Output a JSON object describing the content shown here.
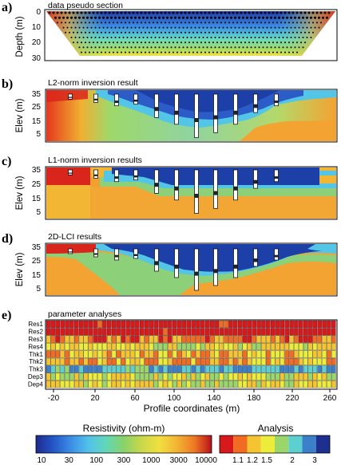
{
  "panels": {
    "a": {
      "label": "a)",
      "title": "data pseudo section",
      "ylabel": "Depth (m)",
      "yticks": [
        "0",
        "10",
        "20",
        "30"
      ]
    },
    "b": {
      "label": "b)",
      "title": "L2-norm inversion result",
      "ylabel": "Elev (m)",
      "yticks": [
        "35",
        "25",
        "15",
        "5"
      ]
    },
    "c": {
      "label": "c)",
      "title": "L1-norm inversion results",
      "ylabel": "Elev (m)",
      "yticks": [
        "35",
        "25",
        "15",
        "5"
      ]
    },
    "d": {
      "label": "d)",
      "title": "2D-LCI results",
      "ylabel": "Elev (m)",
      "yticks": [
        "35",
        "25",
        "15",
        "5"
      ]
    },
    "e": {
      "label": "e)",
      "title": "parameter analyses",
      "rows": [
        "Res1",
        "Res2",
        "Res3",
        "Res4",
        "Thk1",
        "Thk2",
        "Thk3",
        "Dep3",
        "Dep4"
      ]
    }
  },
  "x_axis": {
    "label": "Profile coordinates (m)",
    "ticks": [
      "-20",
      "20",
      "60",
      "100",
      "140",
      "180",
      "220",
      "260"
    ]
  },
  "colorbars": {
    "resistivity": {
      "title": "Resistivity (ohm-m)",
      "ticks": [
        "10",
        "30",
        "100",
        "300",
        "1000",
        "3000",
        "10000"
      ],
      "colors": [
        "#1f2a8c",
        "#2457c8",
        "#3c8ee6",
        "#53c2ea",
        "#62d7b8",
        "#89d16a",
        "#c8d84a",
        "#f0e040",
        "#f3b534",
        "#ee7a24",
        "#e0321c",
        "#b8121a"
      ]
    },
    "analysis": {
      "title": "Analysis",
      "ticks": [
        "1.1",
        "1.2",
        "1.5",
        "2",
        "3"
      ],
      "colors": [
        "#d7191c",
        "#f26b22",
        "#f5c431",
        "#ecec3a",
        "#9bd66b",
        "#5ecfd0",
        "#3b80c9",
        "#1d2f8f"
      ]
    }
  },
  "colors": {
    "deep_blue": "#1d3fa8",
    "mid_blue": "#3c8ee6",
    "cyan": "#53c6e8",
    "green": "#8cd07a",
    "yellow": "#f2dc42",
    "orange": "#f3a332",
    "red": "#d9261c"
  }
}
